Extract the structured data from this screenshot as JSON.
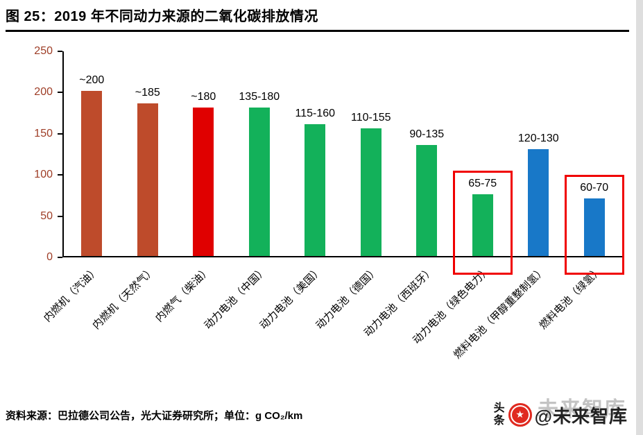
{
  "title": "图 25：2019 年不同动力来源的二氧化碳排放情况",
  "chart_data": {
    "type": "bar",
    "title": "2019 年不同动力来源的二氧化碳排放情况",
    "categories": [
      "内燃机（汽油）",
      "内燃机（天然气）",
      "内燃气（柴油）",
      "动力电池（中国）",
      "动力电池（美国）",
      "动力电池（德国）",
      "动力电池（西班牙）",
      "动力电池（绿色电力）",
      "燃料电池（甲醇重整制氢）",
      "燃料电池（绿氢）"
    ],
    "labels": [
      "~200",
      "~185",
      "~180",
      "135-180",
      "115-160",
      "110-155",
      "90-135",
      "65-75",
      "120-130",
      "60-70"
    ],
    "values": [
      200,
      185,
      180,
      180,
      160,
      155,
      135,
      75,
      130,
      70
    ],
    "values_low": [
      200,
      185,
      180,
      135,
      115,
      110,
      90,
      65,
      120,
      60
    ],
    "values_high": [
      200,
      185,
      180,
      180,
      160,
      155,
      135,
      75,
      130,
      70
    ],
    "colors": [
      "#be4b2b",
      "#be4b2b",
      "#e00000",
      "#13b15a",
      "#13b15a",
      "#13b15a",
      "#13b15a",
      "#13b15a",
      "#1878c8",
      "#1878c8"
    ],
    "highlighted": [
      7,
      9
    ],
    "highlight_color": "#f00000",
    "ylim": [
      0,
      250
    ],
    "yticks": [
      0,
      50,
      100,
      150,
      200,
      250
    ],
    "xlabel": "",
    "ylabel": "",
    "unit": "g CO₂/km",
    "grid": false,
    "legend": false,
    "ytick_color": "#9e3d26"
  },
  "footer": {
    "source": "资料来源：巴拉德公司公告，光大证券研究所；单位：g CO₂/km"
  },
  "stamp": {
    "brand": "头条",
    "handle": "@未来智库",
    "watermark": "未来智库"
  }
}
